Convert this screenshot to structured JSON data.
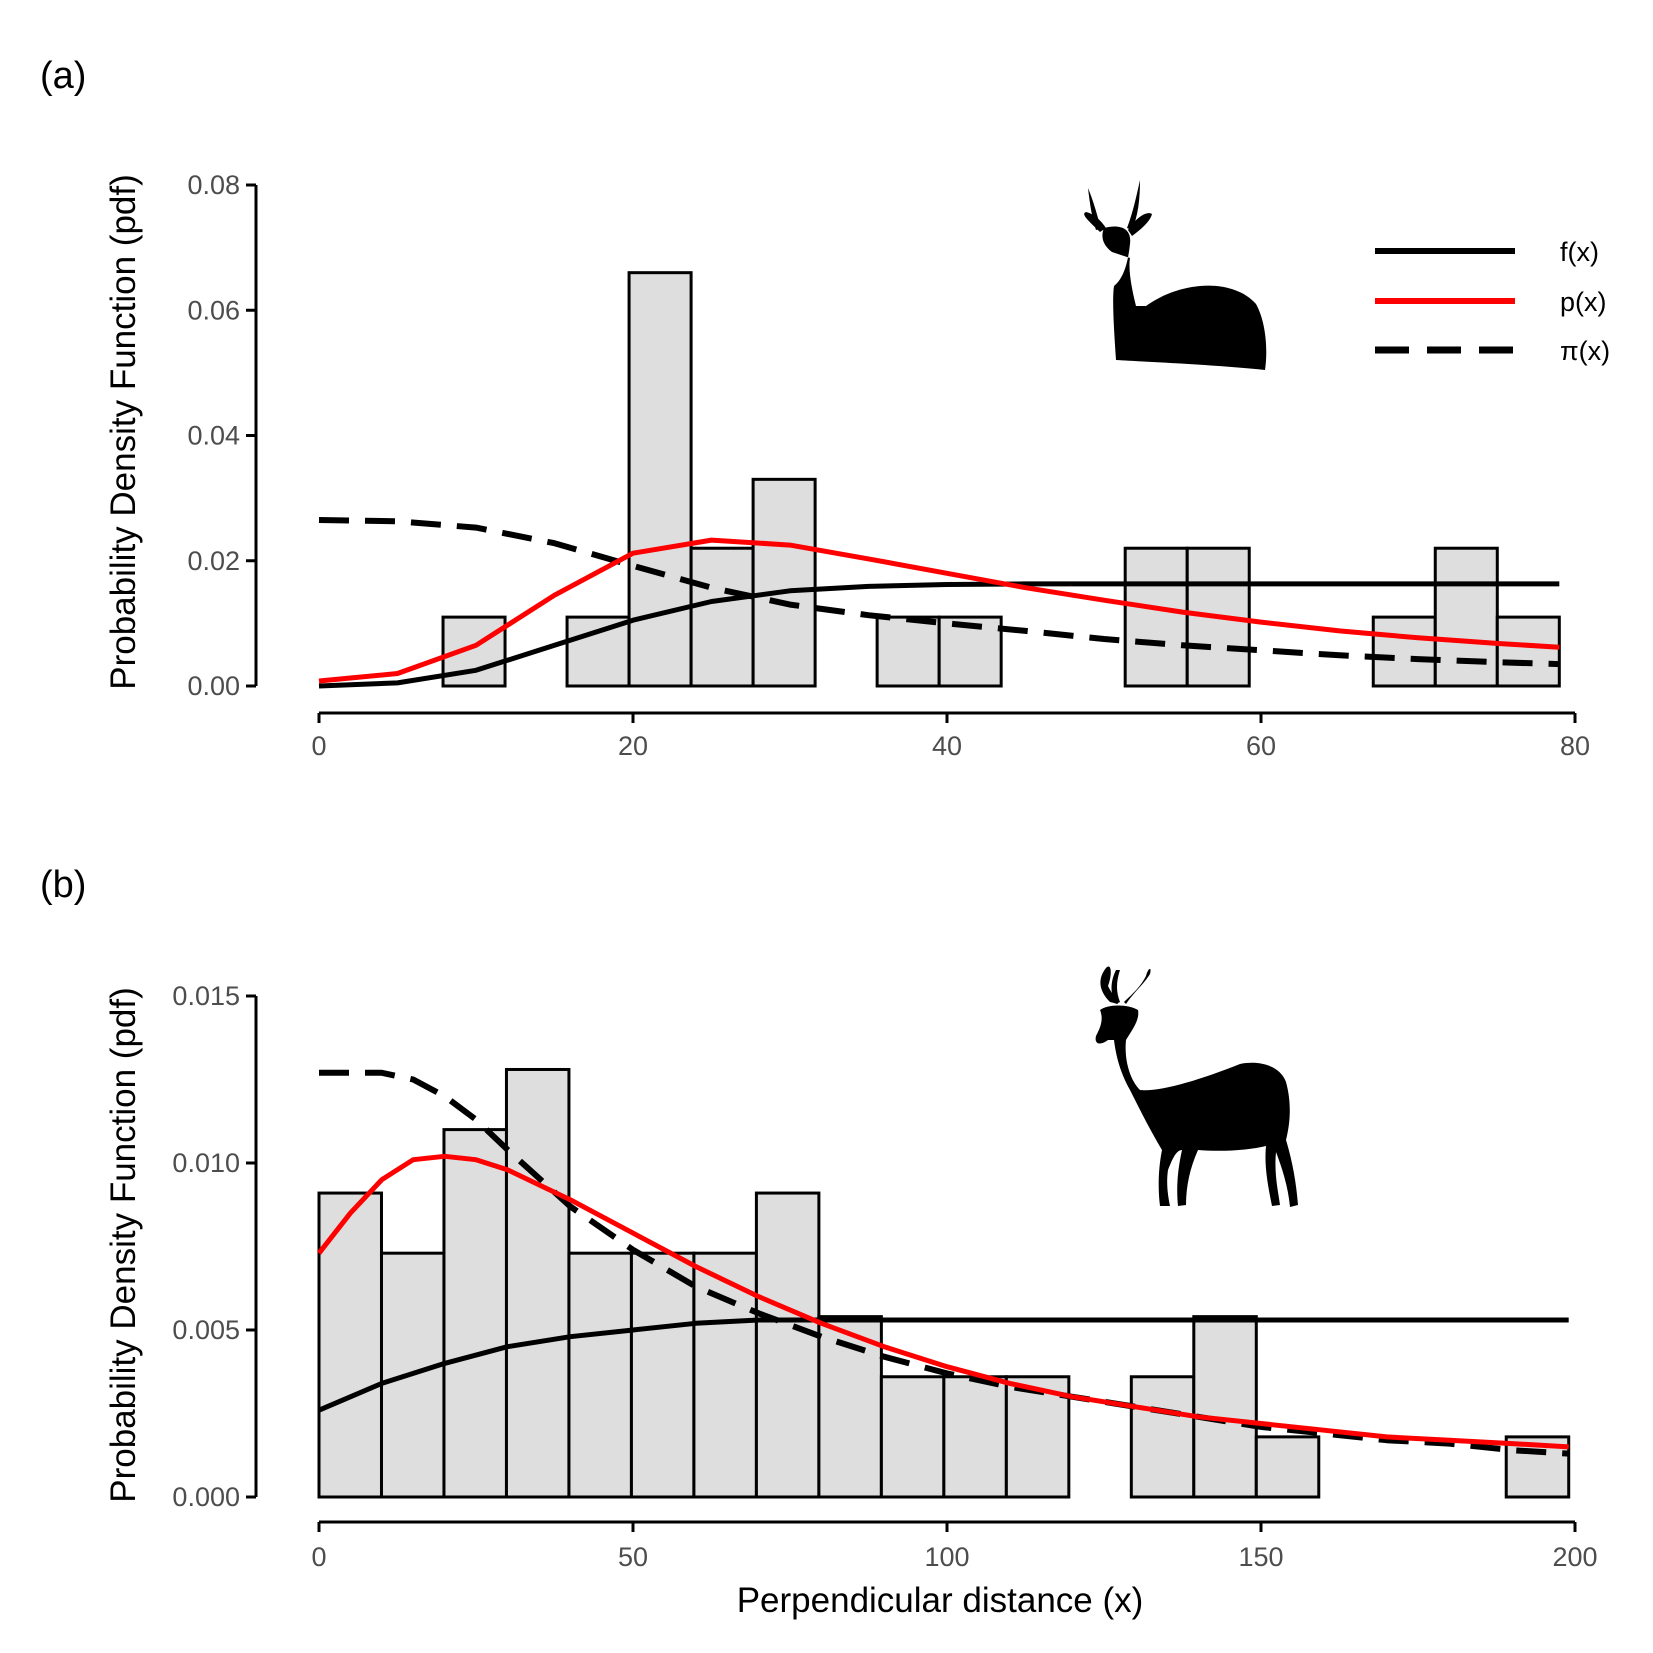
{
  "colors": {
    "bar_fill": "#dedede",
    "bar_stroke": "#000000",
    "f_line": "#000000",
    "p_line": "#ff0000",
    "pi_line": "#000000",
    "axis": "#000000",
    "tick_label": "#4d4d4d"
  },
  "legend": {
    "placement": "top-right of panel (a)",
    "items": [
      {
        "label": "f(x)",
        "color": "#000000",
        "style": "solid"
      },
      {
        "label": "p(x)",
        "color": "#ff0000",
        "style": "solid"
      },
      {
        "label": "π(x)",
        "color": "#000000",
        "style": "dashed"
      }
    ]
  },
  "icons": [
    "gazelle-lying-silhouette-icon",
    "impala-standing-silhouette-icon"
  ],
  "chart_data": [
    {
      "type": "bar",
      "panel_label": "(a)",
      "ylabel": "Probability Density Function (pdf)",
      "xlabel": "",
      "xlim": [
        0,
        80
      ],
      "ylim": [
        0,
        0.08
      ],
      "xticks": [
        0,
        20,
        40,
        60,
        80
      ],
      "yticks": [
        0.0,
        0.02,
        0.04,
        0.06,
        0.08
      ],
      "ytick_labels": [
        "0.00",
        "0.02",
        "0.04",
        "0.06",
        "0.08"
      ],
      "grid": false,
      "histogram": {
        "bin_edges": [
          0,
          3.95,
          7.9,
          11.85,
          15.8,
          19.75,
          23.7,
          27.65,
          31.6,
          35.55,
          39.5,
          43.45,
          47.4,
          51.35,
          55.3,
          59.25,
          63.2,
          67.15,
          71.1,
          75.05,
          79
        ],
        "densities": [
          0,
          0,
          0.011,
          0,
          0.011,
          0.066,
          0.022,
          0.033,
          0,
          0.011,
          0.011,
          0,
          0,
          0.022,
          0.022,
          0,
          0,
          0.011,
          0.022,
          0.011
        ]
      },
      "series": [
        {
          "name": "f(x)",
          "style": "solid",
          "color": "#000000",
          "x": [
            0,
            5,
            10,
            15,
            20,
            25,
            30,
            35,
            40,
            45,
            50,
            55,
            60,
            65,
            70,
            75,
            79
          ],
          "values": [
            0,
            0.0005,
            0.0025,
            0.0065,
            0.0105,
            0.0135,
            0.0152,
            0.0159,
            0.0162,
            0.0163,
            0.0163,
            0.0163,
            0.0163,
            0.0163,
            0.0163,
            0.0163,
            0.0163
          ]
        },
        {
          "name": "p(x)",
          "style": "solid",
          "color": "#ff0000",
          "x": [
            0,
            5,
            10,
            15,
            20,
            25,
            30,
            35,
            40,
            45,
            50,
            55,
            60,
            65,
            70,
            75,
            79
          ],
          "values": [
            0.0008,
            0.002,
            0.0065,
            0.0145,
            0.0212,
            0.0233,
            0.0225,
            0.0203,
            0.018,
            0.0157,
            0.0137,
            0.0118,
            0.0102,
            0.0088,
            0.0077,
            0.0068,
            0.0062
          ]
        },
        {
          "name": "π(x)",
          "style": "dashed",
          "color": "#000000",
          "x": [
            0,
            5,
            10,
            15,
            20,
            25,
            30,
            35,
            40,
            45,
            50,
            55,
            60,
            65,
            70,
            75,
            79
          ],
          "values": [
            0.0265,
            0.0263,
            0.0253,
            0.0228,
            0.0192,
            0.0157,
            0.013,
            0.0113,
            0.01,
            0.0088,
            0.0075,
            0.0065,
            0.0057,
            0.0049,
            0.0043,
            0.0038,
            0.0035
          ]
        }
      ]
    },
    {
      "type": "bar",
      "panel_label": "(b)",
      "ylabel": "Probability Density Function (pdf)",
      "xlabel": "Perpendicular distance (x)",
      "xlim": [
        0,
        200
      ],
      "ylim": [
        0,
        0.015
      ],
      "xticks": [
        0,
        50,
        100,
        150,
        200
      ],
      "yticks": [
        0.0,
        0.005,
        0.01,
        0.015
      ],
      "ytick_labels": [
        "0.000",
        "0.005",
        "0.010",
        "0.015"
      ],
      "grid": false,
      "histogram": {
        "bin_edges": [
          0,
          9.95,
          19.9,
          29.85,
          39.8,
          49.75,
          59.7,
          69.65,
          79.6,
          89.55,
          99.5,
          109.45,
          119.4,
          129.35,
          139.3,
          149.25,
          159.2,
          169.15,
          179.1,
          189.05,
          199
        ],
        "densities": [
          0.0091,
          0.0073,
          0.011,
          0.0128,
          0.0073,
          0.0073,
          0.0073,
          0.0091,
          0.0054,
          0.0036,
          0.0036,
          0.0036,
          0,
          0.0036,
          0.0054,
          0.0018,
          0,
          0,
          0,
          0.0018
        ]
      },
      "series": [
        {
          "name": "f(x)",
          "style": "solid",
          "color": "#000000",
          "x": [
            0,
            10,
            20,
            30,
            40,
            50,
            60,
            70,
            80,
            90,
            100,
            120,
            140,
            160,
            180,
            199
          ],
          "values": [
            0.0026,
            0.0034,
            0.004,
            0.0045,
            0.0048,
            0.005,
            0.0052,
            0.0053,
            0.0053,
            0.0053,
            0.0053,
            0.0053,
            0.0053,
            0.0053,
            0.0053,
            0.0053
          ]
        },
        {
          "name": "p(x)",
          "style": "solid",
          "color": "#ff0000",
          "x": [
            0,
            5,
            10,
            15,
            20,
            25,
            30,
            40,
            50,
            60,
            70,
            80,
            90,
            100,
            110,
            120,
            130,
            140,
            150,
            160,
            170,
            180,
            190,
            199
          ],
          "values": [
            0.0073,
            0.0085,
            0.0095,
            0.0101,
            0.0102,
            0.0101,
            0.0098,
            0.0089,
            0.0079,
            0.0069,
            0.006,
            0.0052,
            0.0045,
            0.0039,
            0.0034,
            0.003,
            0.0027,
            0.0024,
            0.0022,
            0.002,
            0.0018,
            0.0017,
            0.0016,
            0.0015
          ]
        },
        {
          "name": "π(x)",
          "style": "dashed",
          "color": "#000000",
          "x": [
            0,
            10,
            15,
            20,
            25,
            30,
            40,
            50,
            60,
            70,
            80,
            90,
            100,
            110,
            120,
            130,
            140,
            150,
            160,
            170,
            180,
            190,
            199
          ],
          "values": [
            0.0127,
            0.0127,
            0.0125,
            0.012,
            0.0113,
            0.0104,
            0.0087,
            0.0074,
            0.0063,
            0.0055,
            0.0048,
            0.0042,
            0.0037,
            0.0033,
            0.003,
            0.0027,
            0.0024,
            0.0021,
            0.0019,
            0.0017,
            0.0016,
            0.0014,
            0.0013
          ]
        }
      ]
    }
  ]
}
